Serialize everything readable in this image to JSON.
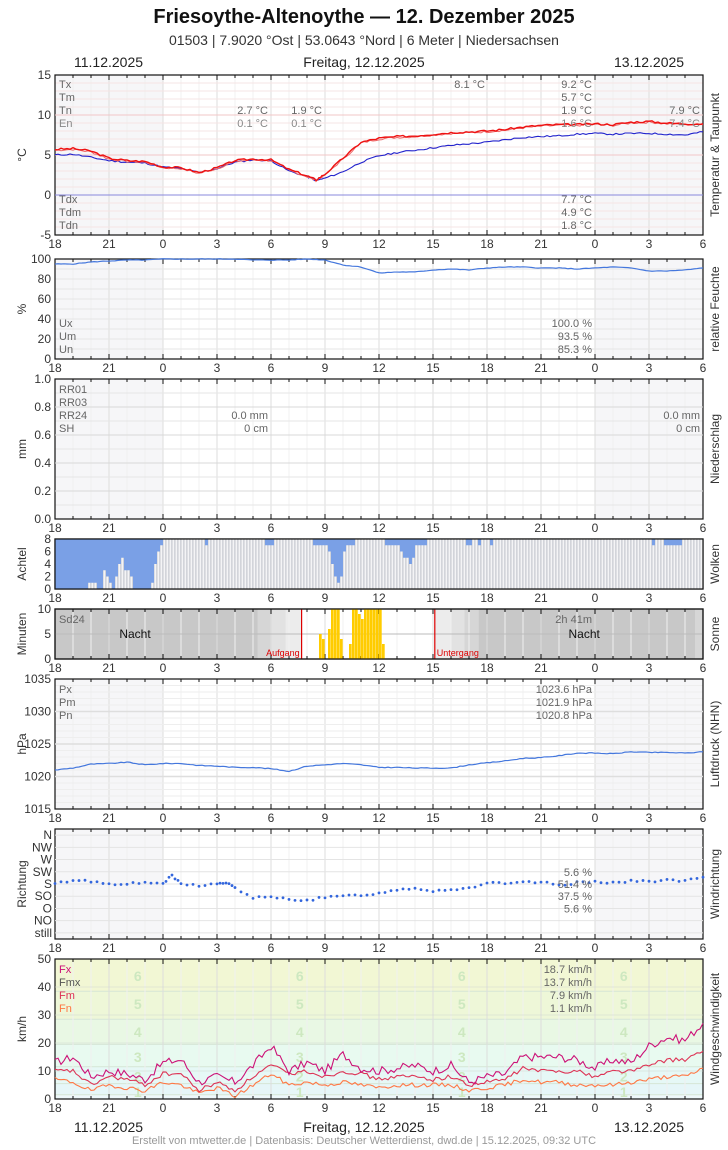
{
  "header": {
    "title": "Friesoythe-Altenoythe  —  12. Dezember 2025",
    "subtitle": "01503  |  7.9020 °Ost  |  53.0643 °Nord  |  6 Meter  |  Niedersachsen",
    "date_left": "11.12.2025",
    "date_center": "Freitag, 12.12.2025",
    "date_right": "13.12.2025"
  },
  "footer": {
    "credit": "Erstellt von mtwetter.de | Datenbasis: Deutscher Wetterdienst, dwd.de | 15.12.2025, 09:32 UTC"
  },
  "x_ticks": [
    "18",
    "21",
    "0",
    "3",
    "6",
    "9",
    "12",
    "15",
    "18",
    "21",
    "0",
    "3",
    "6"
  ],
  "colors": {
    "temp": "#ee1111",
    "dew": "#2222cc",
    "humidity": "#4477dd",
    "cloud": "#7aa0e6",
    "sun": "#ffcc00",
    "pressure": "#4477dd",
    "wind_dir": "#3366dd",
    "fx": "#cc1177",
    "fmx": "#555555",
    "fm": "#dd3355",
    "fn": "#ff7744",
    "sunrise_line": "#dd0000"
  },
  "chart_data": [
    {
      "type": "line",
      "title": "Temperatur & Taupunkt",
      "ylabel": "°C",
      "ylim": [
        -5,
        15
      ],
      "yticks": [
        "15",
        "10",
        "5",
        "0",
        "-5"
      ],
      "x": [
        "18",
        "19",
        "20",
        "21",
        "22",
        "23",
        "0",
        "1",
        "2",
        "3",
        "4",
        "5",
        "6",
        "7",
        "8",
        "8.5",
        "9",
        "10",
        "11",
        "12",
        "13",
        "14",
        "15",
        "16",
        "17",
        "18",
        "19",
        "20",
        "21",
        "22",
        "23",
        "0",
        "1",
        "2",
        "3",
        "4",
        "5",
        "6"
      ],
      "series": [
        {
          "name": "Temperatur",
          "values": [
            5.7,
            5.8,
            5.5,
            4.6,
            4.3,
            4.2,
            3.5,
            3.4,
            2.8,
            3.4,
            4.3,
            4.5,
            4.4,
            3.2,
            2.4,
            1.9,
            2.6,
            4.6,
            6.6,
            7.1,
            7.3,
            7.4,
            7.6,
            7.8,
            7.9,
            8.0,
            8.2,
            8.5,
            8.7,
            8.8,
            8.8,
            8.9,
            8.8,
            9.1,
            9.2,
            9.0,
            8.9,
            8.9
          ]
        },
        {
          "name": "Taupunkt",
          "values": [
            5.0,
            5.1,
            4.7,
            4.3,
            4.1,
            4.0,
            3.5,
            3.3,
            2.8,
            3.3,
            4.1,
            4.4,
            4.3,
            3.0,
            2.3,
            1.8,
            2.1,
            2.9,
            4.1,
            4.9,
            5.3,
            5.6,
            5.9,
            6.2,
            6.4,
            6.6,
            6.9,
            7.2,
            7.3,
            7.4,
            7.6,
            7.7,
            7.6,
            7.7,
            7.7,
            7.6,
            7.5,
            7.9
          ]
        }
      ],
      "annotations": {
        "labels_top": [
          "Tx",
          "Tm",
          "Tn",
          "En"
        ],
        "labels_bottom": [
          "Tdx",
          "Tdm",
          "Tdn"
        ],
        "day1": {
          "Tn": "2.7 °C",
          "En": "0.1 °C"
        },
        "day1b": {
          "Tn": "1.9 °C",
          "En": "0.1 °C"
        },
        "day2_top": {
          "Tx_time": "8.1 °C",
          "Tx": "9.2 °C",
          "Tm": "5.7 °C",
          "Tn": "1.9 °C",
          "En": "1.6 °C"
        },
        "day2_bottom": {
          "Tdx": "7.7 °C",
          "Tdm": "4.9 °C",
          "Tdn": "1.8 °C"
        },
        "day3": {
          "Tn": "7.9 °C",
          "En": "7.4 °C"
        }
      }
    },
    {
      "type": "line",
      "title": "relative Feuchte",
      "ylabel": "%",
      "ylim": [
        0,
        100
      ],
      "yticks": [
        "100",
        "80",
        "60",
        "40",
        "20",
        "0"
      ],
      "x": [
        "18",
        "19",
        "20",
        "21",
        "22",
        "23",
        "0",
        "1",
        "2",
        "3",
        "4",
        "5",
        "6",
        "7",
        "8",
        "9",
        "10",
        "11",
        "12",
        "13",
        "14",
        "15",
        "16",
        "17",
        "18",
        "19",
        "20",
        "21",
        "22",
        "23",
        "0",
        "1",
        "2",
        "3",
        "4",
        "5",
        "6"
      ],
      "series": [
        {
          "name": "rel. Feuchte",
          "values": [
            95,
            95,
            97,
            98,
            99,
            99,
            100,
            100,
            100,
            100,
            100,
            99,
            99,
            99,
            100,
            99,
            94,
            92,
            86,
            87,
            87,
            89,
            90,
            89,
            91,
            92,
            92,
            91,
            91,
            90,
            91,
            92,
            91,
            88,
            88,
            89,
            91
          ]
        }
      ],
      "annotations": {
        "labels": [
          "Ux",
          "Um",
          "Un"
        ],
        "values": [
          "100.0 %",
          "93.5 %",
          "85.3 %"
        ]
      }
    },
    {
      "type": "bar",
      "title": "Niederschlag",
      "ylabel": "mm",
      "ylim": [
        0,
        1.0
      ],
      "yticks": [
        "1.0",
        "0.8",
        "0.6",
        "0.4",
        "0.2",
        "0.0"
      ],
      "values": [],
      "annotations": {
        "labels": [
          "RR01",
          "RR03",
          "RR24",
          "SH"
        ],
        "day2": {
          "RR24": "0.0 mm",
          "SH": "0 cm"
        },
        "day3": {
          "RR24": "0.0 mm",
          "SH": "0 cm"
        }
      }
    },
    {
      "type": "bar",
      "title": "Wolken",
      "ylabel": "Achtel",
      "ylim": [
        0,
        8
      ],
      "yticks": [
        "8",
        "6",
        "4",
        "2",
        "0"
      ],
      "x_step_minutes": 10,
      "values": [
        8,
        8,
        8,
        8,
        8,
        8,
        8,
        8,
        8,
        8,
        8,
        8,
        8,
        8,
        8,
        8,
        8,
        8,
        8,
        8,
        8,
        8,
        8,
        8,
        8,
        8,
        8,
        8,
        8,
        8,
        8,
        8,
        8,
        8,
        8,
        8,
        8,
        8,
        8,
        8,
        8,
        8,
        8,
        8,
        8,
        8,
        8,
        8,
        8,
        8,
        8,
        8,
        8,
        8,
        8,
        8,
        8,
        8,
        8,
        8,
        8,
        8,
        8,
        8,
        8,
        8,
        8,
        8,
        8,
        8,
        8,
        8,
        8,
        8,
        8,
        8,
        8,
        8,
        8,
        8,
        8,
        8,
        8,
        8,
        8,
        8,
        8,
        8,
        8,
        8,
        8,
        8,
        8,
        8,
        8,
        8,
        8,
        8,
        8,
        8,
        8,
        8,
        8,
        8,
        8,
        8,
        8,
        8,
        8,
        8,
        8,
        8,
        8,
        8,
        8,
        8,
        8,
        8,
        8,
        8,
        8,
        8,
        8,
        8,
        8,
        8,
        8,
        8,
        8,
        8,
        8,
        8,
        8,
        8,
        8,
        8,
        8,
        8,
        8,
        8,
        8,
        8,
        8,
        8,
        8,
        8,
        8,
        8,
        8,
        8,
        8,
        8,
        8,
        8,
        8,
        8,
        8,
        8,
        8,
        8,
        8,
        8,
        8,
        8,
        8,
        8,
        8,
        8,
        8,
        8,
        8,
        8,
        8,
        8,
        8,
        8,
        8,
        8,
        8,
        8,
        8,
        8,
        8,
        8,
        8,
        8,
        8,
        8,
        8,
        8,
        8,
        8,
        8,
        8,
        8,
        8,
        8,
        8,
        8,
        8,
        8,
        8,
        8,
        8,
        8,
        8,
        8,
        8,
        8,
        8,
        8,
        8
      ],
      "cloud_blue_heights": [
        8,
        8,
        8,
        8,
        8,
        8,
        8,
        8,
        8,
        8,
        8,
        7,
        7,
        7,
        8,
        8,
        6,
        6,
        7,
        5,
        8,
        8,
        4,
        3,
        5,
        7,
        5,
        6,
        8,
        8,
        8,
        8,
        8,
        8,
        8,
        8,
        8,
        8,
        8,
        8,
        8,
        8,
        8,
        8,
        8,
        7,
        8,
        8,
        8,
        8,
        8,
        8,
        8,
        8,
        8,
        8,
        8,
        8,
        8,
        8,
        8,
        8,
        7,
        6,
        2,
        8,
        8,
        8
      ],
      "notes": "Blue = observed cloud cover above baseline; grey = total 8/8 frame"
    },
    {
      "type": "bar",
      "title": "Sonne",
      "ylabel": "Minuten",
      "ylim": [
        0,
        10
      ],
      "yticks": [
        "10",
        "5",
        "0"
      ],
      "x": [
        "8:40",
        "8:50",
        "9:00",
        "9:10",
        "9:20",
        "9:30",
        "9:40",
        "9:50",
        "10:00",
        "10:10",
        "10:20",
        "10:30",
        "10:40",
        "10:50",
        "11:00",
        "11:10",
        "11:20",
        "11:30",
        "11:40",
        "11:50",
        "12:00",
        "12:10"
      ],
      "values": [
        5,
        4,
        0,
        6,
        10,
        10,
        10,
        4,
        0,
        0,
        3,
        10,
        10,
        9,
        8,
        10,
        10,
        10,
        10,
        10,
        10,
        3
      ],
      "annotations": {
        "Sd24_label": "Sd24",
        "Sd24_value": "2h 41m",
        "night_label": "Nacht",
        "sunrise_label": "Aufgang",
        "sunset_label": "Untergang",
        "sunrise_hour": 7.7,
        "sunset_hour": 15.1
      }
    },
    {
      "type": "line",
      "title": "Luftdruck (NHN)",
      "ylabel": "hPa",
      "ylim": [
        1015,
        1035
      ],
      "yticks": [
        "1035",
        "1030",
        "1025",
        "1020",
        "1015"
      ],
      "x": [
        "18",
        "19",
        "20",
        "21",
        "22",
        "23",
        "0",
        "1",
        "2",
        "3",
        "4",
        "5",
        "6",
        "7",
        "8",
        "9",
        "10",
        "11",
        "12",
        "13",
        "14",
        "15",
        "16",
        "17",
        "18",
        "19",
        "20",
        "21",
        "22",
        "23",
        "0",
        "1",
        "2",
        "3",
        "4",
        "5",
        "6"
      ],
      "series": [
        {
          "name": "Luftdruck",
          "values": [
            1021.0,
            1021.3,
            1021.9,
            1022.0,
            1022.2,
            1021.8,
            1022.0,
            1022.0,
            1021.7,
            1021.6,
            1021.4,
            1021.4,
            1021.2,
            1020.8,
            1021.6,
            1021.8,
            1022.0,
            1021.8,
            1021.4,
            1021.4,
            1021.3,
            1021.3,
            1021.3,
            1021.8,
            1022.1,
            1022.4,
            1022.8,
            1022.9,
            1023.2,
            1023.6,
            1023.6,
            1023.5,
            1023.8,
            1023.7,
            1023.7,
            1023.6,
            1023.8
          ]
        }
      ],
      "annotations": {
        "labels": [
          "Px",
          "Pm",
          "Pn"
        ],
        "values": [
          "1023.6 hPa",
          "1021.9 hPa",
          "1020.8 hPa"
        ]
      }
    },
    {
      "type": "scatter",
      "title": "Windrichtung",
      "ylabel": "Richtung",
      "yticks": [
        "N",
        "NW",
        "W",
        "SW",
        "S",
        "SO",
        "O",
        "NO",
        "still"
      ],
      "x": [
        "18",
        "19",
        "20",
        "21",
        "22",
        "23",
        "0",
        "0.5",
        "1",
        "2",
        "3",
        "3.5",
        "4",
        "5",
        "6",
        "7",
        "8",
        "9",
        "10",
        "11",
        "12",
        "13",
        "14",
        "15",
        "16",
        "17",
        "18",
        "19",
        "20",
        "21",
        "22",
        "23",
        "0",
        "1",
        "2",
        "3",
        "4",
        "5",
        "6"
      ],
      "values_deg": [
        180,
        195,
        190,
        180,
        182,
        183,
        183,
        210,
        180,
        175,
        180,
        185,
        165,
        130,
        130,
        125,
        120,
        130,
        135,
        140,
        145,
        160,
        165,
        155,
        160,
        165,
        185,
        180,
        185,
        187,
        175,
        185,
        190,
        185,
        190,
        190,
        195,
        190,
        205
      ],
      "annotations": {
        "values": [
          "5.6 %",
          "51.4 %",
          "37.5 %",
          "5.6 %"
        ],
        "rows": [
          "SW",
          "S",
          "SO",
          "O"
        ]
      }
    },
    {
      "type": "line",
      "title": "Windgeschwindigkeit",
      "ylabel": "km/h",
      "ylim": [
        0,
        50
      ],
      "yticks": [
        "50",
        "40",
        "30",
        "20",
        "10",
        "0"
      ],
      "beaufort_labels": [
        "6",
        "5",
        "4",
        "3",
        "2",
        "1"
      ],
      "x": [
        "18",
        "19",
        "20",
        "21",
        "22",
        "23",
        "0",
        "1",
        "2",
        "3",
        "4",
        "5",
        "6",
        "7",
        "8",
        "9",
        "10",
        "11",
        "12",
        "13",
        "14",
        "15",
        "16",
        "17",
        "18",
        "19",
        "20",
        "21",
        "22",
        "23",
        "0",
        "1",
        "2",
        "3",
        "4",
        "5",
        "6"
      ],
      "series": [
        {
          "name": "Fx",
          "values": [
            13,
            15,
            8,
            10,
            9,
            7,
            13,
            14,
            6,
            8,
            6,
            12,
            19,
            10,
            13,
            10,
            16,
            11,
            10,
            11,
            12,
            10,
            12,
            6,
            8,
            9,
            15,
            15,
            15,
            14,
            11,
            14,
            13,
            19,
            22,
            21,
            27
          ]
        },
        {
          "name": "Fm",
          "values": [
            10,
            10,
            5,
            8,
            7,
            5,
            9,
            9,
            3,
            6,
            3,
            8,
            12,
            9,
            10,
            8,
            10,
            9,
            7,
            8,
            8,
            7,
            8,
            5,
            6,
            7,
            11,
            10,
            10,
            10,
            8,
            10,
            10,
            12,
            14,
            14,
            17
          ]
        },
        {
          "name": "Fn",
          "values": [
            7,
            6,
            3,
            5,
            4,
            3,
            6,
            5,
            2,
            4,
            1,
            5,
            9,
            5,
            6,
            5,
            6,
            5,
            4,
            5,
            5,
            5,
            5,
            3,
            4,
            5,
            7,
            6,
            6,
            5,
            5,
            5,
            6,
            7,
            8,
            8,
            11
          ]
        }
      ],
      "annotations": {
        "labels": [
          "Fx",
          "Fmx",
          "Fm",
          "Fn"
        ],
        "values": [
          "18.7 km/h",
          "13.7 km/h",
          "7.9 km/h",
          "1.1 km/h"
        ]
      }
    }
  ],
  "panels": {
    "temp": {
      "side_label": "Temperatur & Taupunkt",
      "unit": "°C"
    },
    "hum": {
      "side_label": "relative Feuchte",
      "unit": "%"
    },
    "precip": {
      "side_label": "Niederschlag",
      "unit": "mm"
    },
    "cloud": {
      "side_label": "Wolken",
      "unit": "Achtel"
    },
    "sun": {
      "side_label": "Sonne",
      "unit": "Minuten"
    },
    "press": {
      "side_label": "Luftdruck (NHN)",
      "unit": "hPa"
    },
    "wdir": {
      "side_label": "Windrichtung",
      "unit": "Richtung"
    },
    "wspd": {
      "side_label": "Windgeschwindigkeit",
      "unit": "km/h"
    }
  }
}
